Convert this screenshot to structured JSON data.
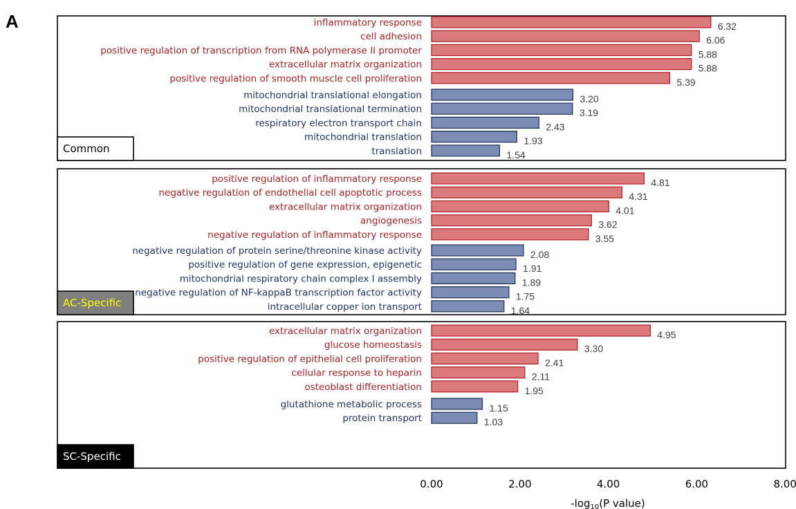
{
  "figure_label": "A",
  "colors": {
    "up_fill": "#da7a7d",
    "up_stroke": "#b01c22",
    "up_text": "#b21f24",
    "down_fill": "#7c8db5",
    "down_stroke": "#1e2f5a",
    "down_text": "#1f3567"
  },
  "chart_data": {
    "type": "bar",
    "orientation": "horizontal",
    "xlabel": "-log10(P value)",
    "xlim": [
      0,
      8
    ],
    "xticks": [
      "0.00",
      "2.00",
      "4.00",
      "6.00",
      "8.00"
    ],
    "grid": false,
    "panels": [
      {
        "name": "Common",
        "label_style": "white",
        "bars": [
          {
            "term": "inflammatory response",
            "value": 6.32,
            "label": "6.32",
            "group": "up"
          },
          {
            "term": "cell adhesion",
            "value": 6.06,
            "label": "6.06",
            "group": "up"
          },
          {
            "term": "positive regulation of transcription from RNA polymerase II promoter",
            "value": 5.88,
            "label": "5.88",
            "group": "up"
          },
          {
            "term": "extracellular matrix organization",
            "value": 5.88,
            "label": "5.88",
            "group": "up"
          },
          {
            "term": "positive regulation of smooth muscle cell proliferation",
            "value": 5.39,
            "label": "5.39",
            "group": "up"
          },
          {
            "term": "mitochondrial translational elongation",
            "value": 3.2,
            "label": "3.20",
            "group": "down"
          },
          {
            "term": "mitochondrial translational termination",
            "value": 3.19,
            "label": "3.19",
            "group": "down"
          },
          {
            "term": "respiratory electron transport chain",
            "value": 2.43,
            "label": "2.43",
            "group": "down"
          },
          {
            "term": "mitochondrial translation",
            "value": 1.93,
            "label": "1.93",
            "group": "down"
          },
          {
            "term": "translation",
            "value": 1.54,
            "label": "1.54",
            "group": "down"
          }
        ]
      },
      {
        "name": "AC-Specific",
        "label_style": "gray",
        "bars": [
          {
            "term": "positive regulation of inflammatory response",
            "value": 4.81,
            "label": "4.81",
            "group": "up"
          },
          {
            "term": "negative regulation of endothelial cell apoptotic process",
            "value": 4.31,
            "label": "4.31",
            "group": "up"
          },
          {
            "term": "extracellular matrix organization",
            "value": 4.01,
            "label": "4.01",
            "group": "up"
          },
          {
            "term": "angiogenesis",
            "value": 3.62,
            "label": "3.62",
            "group": "up"
          },
          {
            "term": "negative regulation of inflammatory response",
            "value": 3.55,
            "label": "3.55",
            "group": "up"
          },
          {
            "term": "negative regulation of protein serine/threonine kinase activity",
            "value": 2.08,
            "label": "2.08",
            "group": "down"
          },
          {
            "term": "positive regulation of gene expression, epigenetic",
            "value": 1.91,
            "label": "1.91",
            "group": "down"
          },
          {
            "term": "mitochondrial respiratory chain complex I assembly",
            "value": 1.89,
            "label": "1.89",
            "group": "down"
          },
          {
            "term": "negative regulation of NF-kappaB transcription factor activity",
            "value": 1.75,
            "label": "1.75",
            "group": "down"
          },
          {
            "term": "intracellular copper ion transport",
            "value": 1.64,
            "label": "1.64",
            "group": "down"
          }
        ]
      },
      {
        "name": "SC-Specific",
        "label_style": "black",
        "bars": [
          {
            "term": "extracellular matrix organization",
            "value": 4.95,
            "label": "4.95",
            "group": "up"
          },
          {
            "term": "glucose homeostasis",
            "value": 3.3,
            "label": "3.30",
            "group": "up"
          },
          {
            "term": "positive regulation of epithelial cell proliferation",
            "value": 2.41,
            "label": "2.41",
            "group": "up"
          },
          {
            "term": "cellular response to heparin",
            "value": 2.11,
            "label": "2.11",
            "group": "up"
          },
          {
            "term": "osteoblast differentiation",
            "value": 1.95,
            "label": "1.95",
            "group": "up"
          },
          {
            "term": "glutathione metabolic process",
            "value": 1.15,
            "label": "1.15",
            "group": "down"
          },
          {
            "term": "protein transport",
            "value": 1.03,
            "label": "1.03",
            "group": "down"
          }
        ]
      }
    ]
  }
}
